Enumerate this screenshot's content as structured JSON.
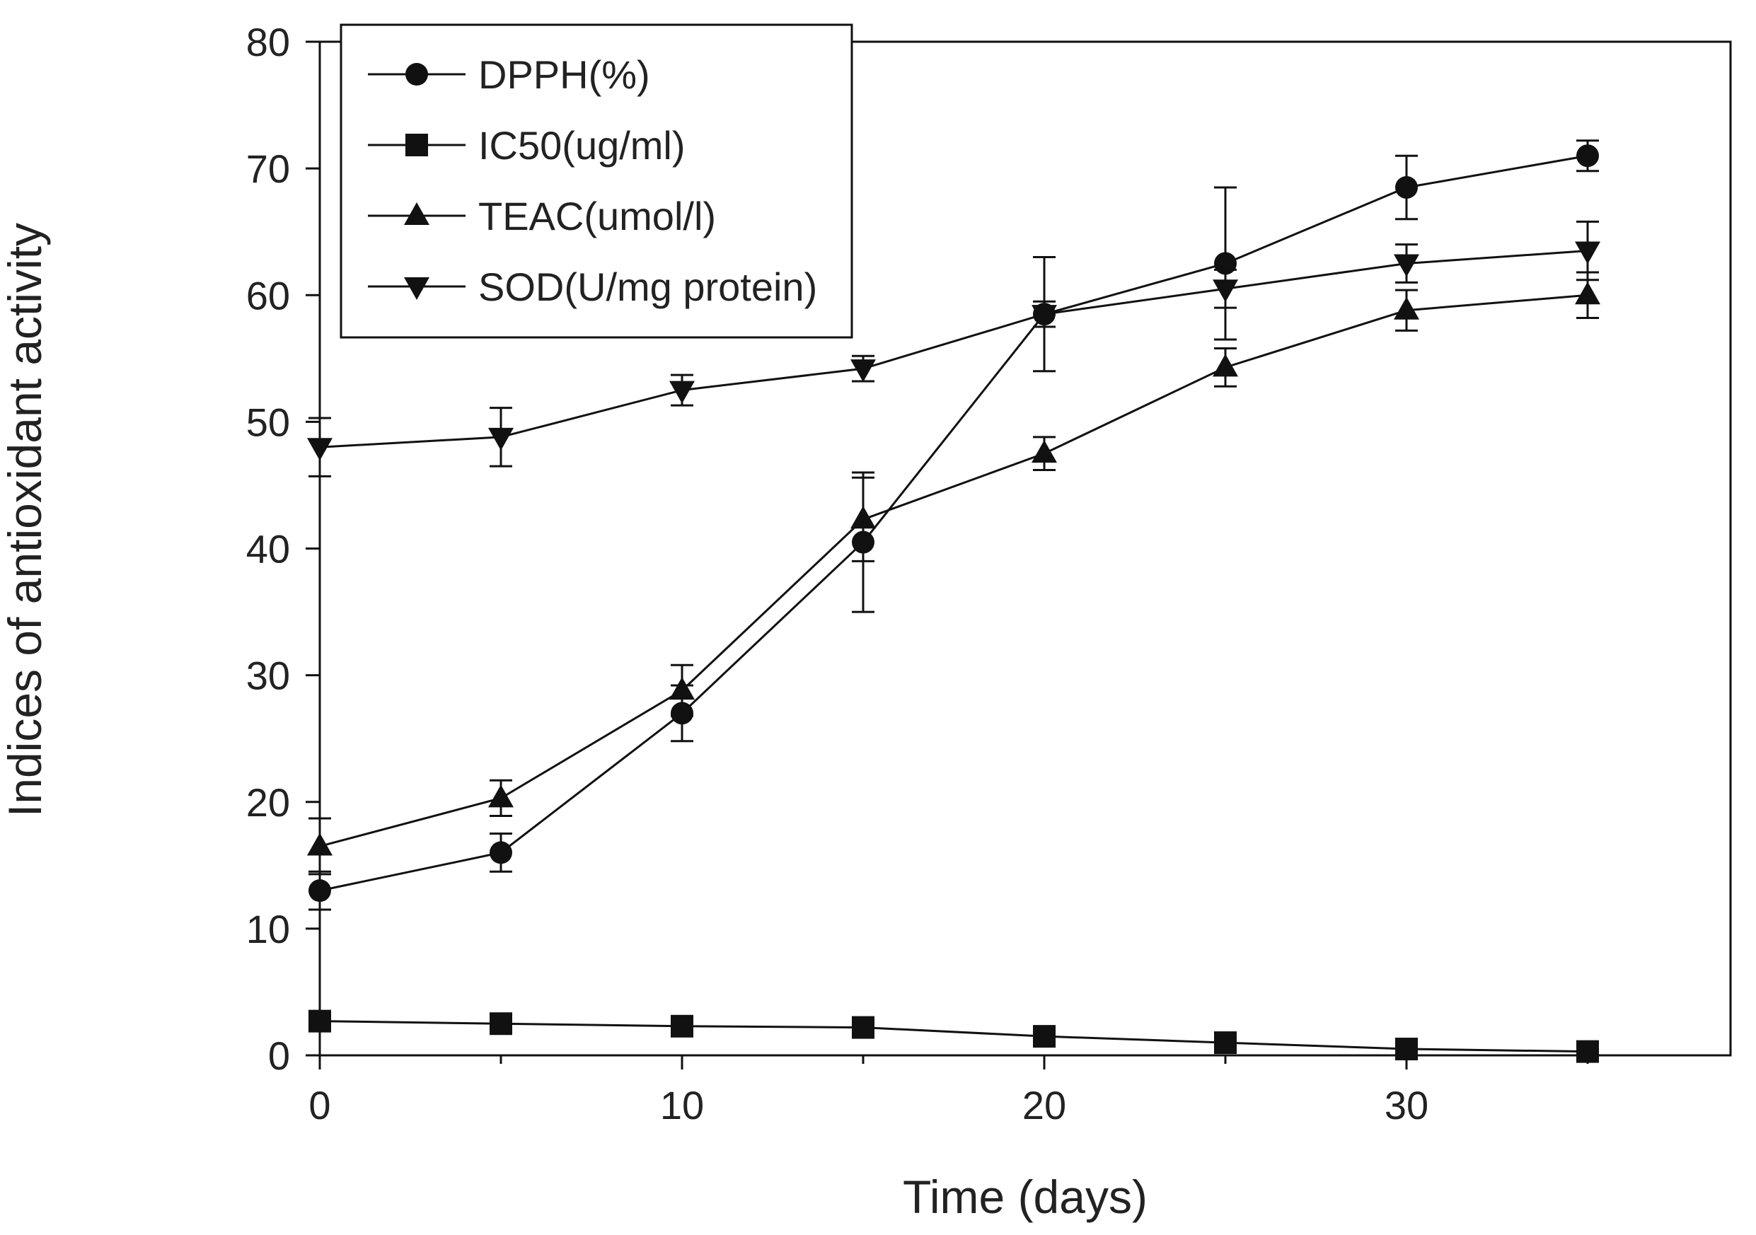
{
  "chart_data": {
    "type": "line",
    "title": "",
    "xlabel": "Time (days)",
    "ylabel": "Indices of antioxidant activity",
    "xlim": [
      0,
      39
    ],
    "ylim": [
      0,
      80
    ],
    "x": [
      0,
      5,
      10,
      15,
      20,
      25,
      30,
      35
    ],
    "xticks": [
      0,
      10,
      20,
      30
    ],
    "yticks": [
      0,
      10,
      20,
      30,
      40,
      50,
      60,
      70,
      80
    ],
    "grid": false,
    "legend_position": "top-left",
    "series": [
      {
        "name": "DPPH(%)",
        "marker": "circle",
        "values": [
          13,
          16,
          27,
          40.5,
          58.5,
          62.5,
          68.5,
          71
        ],
        "errors": [
          1.5,
          1.5,
          2.2,
          5.5,
          4.5,
          6,
          2.5,
          1.2
        ]
      },
      {
        "name": "IC50(ug/ml)",
        "marker": "square",
        "values": [
          2.7,
          2.5,
          2.3,
          2.2,
          1.5,
          1,
          0.5,
          0.3
        ],
        "errors": [
          0.3,
          0.3,
          0.3,
          0.3,
          0.3,
          0.3,
          0.2,
          0.2
        ]
      },
      {
        "name": "TEAC(umol/l)",
        "marker": "triangle-up",
        "values": [
          16.5,
          20.3,
          28.8,
          42.3,
          47.5,
          54.3,
          58.8,
          60
        ],
        "errors": [
          2.2,
          1.4,
          2,
          3.3,
          1.3,
          1.5,
          1.6,
          1.8
        ]
      },
      {
        "name": "SOD(U/mg protein)",
        "marker": "triangle-down",
        "values": [
          48,
          48.8,
          52.5,
          54.2,
          58.5,
          60.5,
          62.5,
          63.5
        ],
        "errors": [
          2.3,
          2.3,
          1.2,
          1,
          1,
          1.5,
          1.5,
          2.3
        ]
      }
    ]
  }
}
